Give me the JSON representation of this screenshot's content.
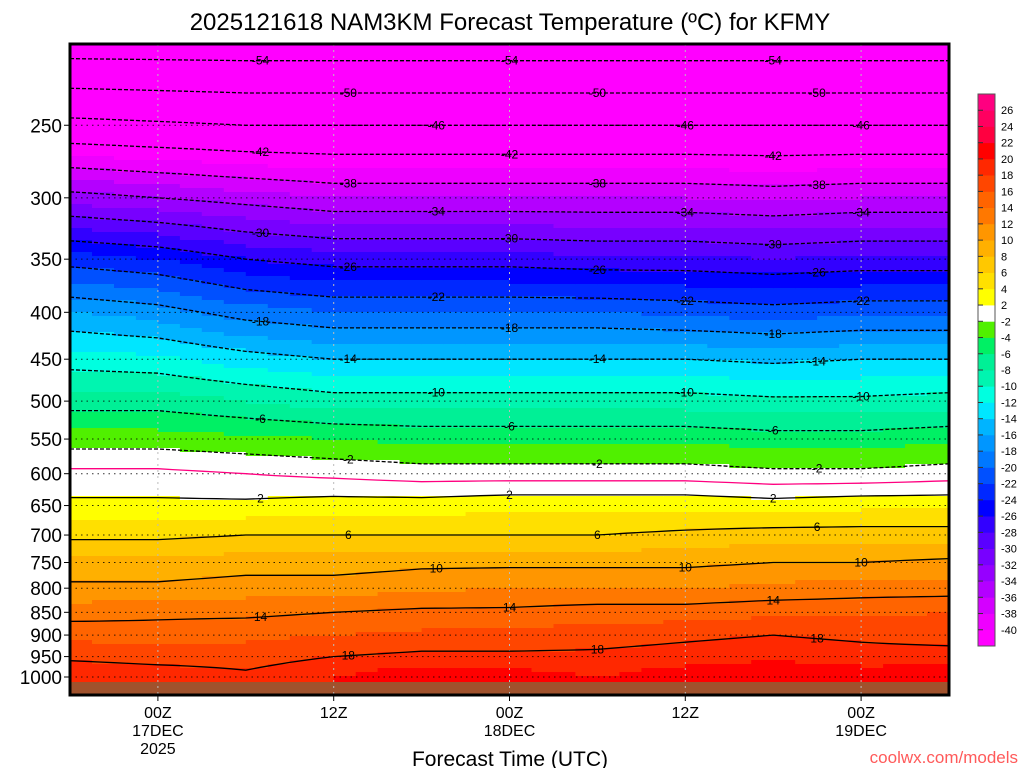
{
  "chart_data": {
    "type": "heatmap",
    "title": "2025121618 NAM3KM Forecast Temperature (ºC) for KFMY",
    "xlabel": "Forecast Time (UTC)",
    "ylabel": "",
    "x_units": "hours since 2025-12-16 18Z",
    "xlim": [
      0,
      60
    ],
    "ylim_hpa": [
      1046,
      204
    ],
    "y_scale": "log-pressure",
    "x_ticks": [
      {
        "hour": 6,
        "label": [
          "00Z",
          "17DEC",
          "2025"
        ]
      },
      {
        "hour": 18,
        "label": [
          "12Z"
        ]
      },
      {
        "hour": 30,
        "label": [
          "00Z",
          "18DEC"
        ]
      },
      {
        "hour": 42,
        "label": [
          "12Z"
        ]
      },
      {
        "hour": 54,
        "label": [
          "00Z",
          "19DEC"
        ]
      }
    ],
    "y_ticks": [
      250,
      300,
      350,
      400,
      450,
      500,
      550,
      600,
      650,
      700,
      750,
      800,
      850,
      900,
      950,
      1000
    ],
    "grid": true,
    "times": [
      0,
      6,
      12,
      18,
      24,
      30,
      36,
      42,
      48,
      54,
      60
    ],
    "levels_hpa": [
      1000,
      950,
      900,
      850,
      800,
      750,
      700,
      650,
      600,
      550,
      500,
      450,
      400,
      350,
      300,
      250,
      200
    ],
    "temperature_c": [
      [
        20,
        17.5,
        15.5,
        13,
        10.5,
        8.5,
        5.5,
        2.5,
        0.5,
        -3,
        -7,
        -11,
        -16,
        -23,
        -33,
        -45,
        -57
      ],
      [
        19.5,
        17,
        15,
        13.5,
        10.5,
        8.5,
        5.5,
        2.5,
        0.5,
        -3,
        -7,
        -11.5,
        -17,
        -24,
        -34,
        -45.5,
        -57
      ],
      [
        18.5,
        17,
        15.5,
        13.5,
        11,
        9,
        6,
        2.5,
        0,
        -3.5,
        -8,
        -13,
        -19,
        -26,
        -35,
        -46,
        -57
      ],
      [
        20,
        18,
        16,
        14,
        11,
        9,
        6,
        3,
        -0.5,
        -4,
        -9,
        -14,
        -20,
        -27,
        -36,
        -46,
        -57
      ],
      [
        21.5,
        18.5,
        16.5,
        14.5,
        11.5,
        9.5,
        6,
        3,
        -1,
        -4.5,
        -9,
        -14,
        -20,
        -27,
        -36,
        -46,
        -57
      ],
      [
        21,
        18.5,
        16.5,
        14.5,
        12,
        9.5,
        6,
        3.5,
        -1,
        -4.5,
        -9,
        -14,
        -20,
        -27,
        -36,
        -46,
        -57
      ],
      [
        20,
        18.5,
        17,
        15,
        12,
        9.5,
        6,
        3.5,
        -1,
        -4.5,
        -9,
        -14,
        -20,
        -27.5,
        -36,
        -46,
        -57
      ],
      [
        21,
        19,
        17.5,
        15,
        12,
        9.5,
        6.5,
        3.5,
        -1,
        -4.5,
        -9,
        -14,
        -20.5,
        -27.5,
        -36,
        -46,
        -57
      ],
      [
        22,
        19.5,
        18,
        15.5,
        12.5,
        10,
        7,
        3,
        -1.5,
        -5,
        -9.5,
        -14.5,
        -21,
        -28,
        -36.5,
        -46,
        -57
      ],
      [
        21,
        19,
        17.5,
        15.5,
        13,
        10,
        7,
        3.5,
        -1.5,
        -5,
        -9.5,
        -14,
        -20.5,
        -27.5,
        -36,
        -46,
        -57
      ],
      [
        21.5,
        19,
        17,
        16,
        13,
        10.5,
        7,
        3.5,
        -1,
        -4.5,
        -9,
        -14,
        -20.5,
        -27.5,
        -36,
        -46,
        -57
      ]
    ],
    "contour_levels": [
      -54,
      -50,
      -46,
      -42,
      -38,
      -34,
      -30,
      -26,
      -22,
      -18,
      -14,
      -10,
      -6,
      -2,
      0,
      2,
      6,
      10,
      14,
      18
    ],
    "colorbar": {
      "labels": [
        "26",
        "24",
        "22",
        "20",
        "18",
        "16",
        "14",
        "12",
        "10",
        "8",
        "6",
        "4",
        "2",
        "-2",
        "-4",
        "-6",
        "-8",
        "-10",
        "-12",
        "-14",
        "-16",
        "-18",
        "-20",
        "-22",
        "-24",
        "-26",
        "-28",
        "-30",
        "-32",
        "-34",
        "-36",
        "-38",
        "-40"
      ],
      "bounds": [
        -40,
        -38,
        -36,
        -34,
        -32,
        -30,
        -28,
        -26,
        -24,
        -22,
        -20,
        -18,
        -16,
        -14,
        -12,
        -10,
        -8,
        -6,
        -4,
        -2,
        2,
        4,
        6,
        8,
        10,
        12,
        14,
        16,
        18,
        20,
        22,
        24,
        26
      ],
      "colors": [
        "#ff00ff",
        "#ee00ff",
        "#d400ff",
        "#b400ff",
        "#9600ff",
        "#7800ff",
        "#5a00ff",
        "#3200ff",
        "#0000ff",
        "#0028ff",
        "#0050ff",
        "#0078ff",
        "#0096ff",
        "#00b4ff",
        "#00e6ff",
        "#00ffe0",
        "#00f5b0",
        "#00f096",
        "#00f064",
        "#50f000",
        "#ffffff",
        "#ffff00",
        "#ffe000",
        "#ffc800",
        "#ffb000",
        "#ff9600",
        "#ff7800",
        "#ff6400",
        "#ff4600",
        "#ff2800",
        "#ff0000",
        "#ff0040",
        "#ff0060",
        "#ff0080"
      ]
    },
    "ground_color": "#a0522d",
    "zero_line_color": "#ff0080"
  },
  "watermark": "coolwx.com/models"
}
